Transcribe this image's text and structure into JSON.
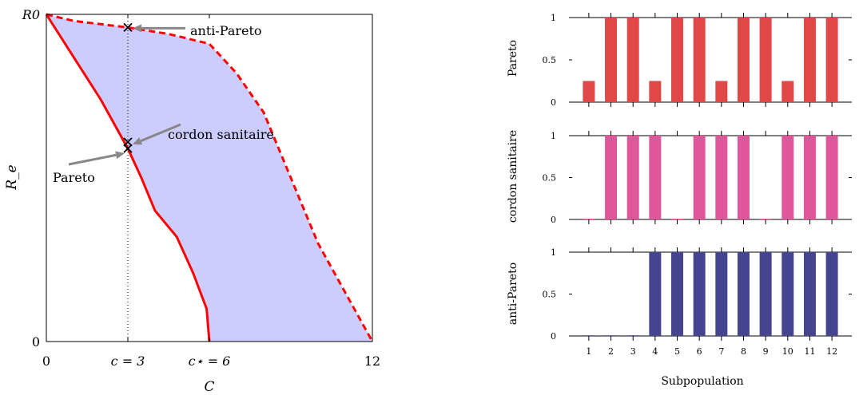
{
  "chart_data": [
    {
      "type": "area",
      "xlabel": "C",
      "ylabel": "R_e",
      "xlim": [
        0,
        12
      ],
      "ylim": [
        0,
        1
      ],
      "x_ticks": [
        {
          "value": 0,
          "label": "0"
        },
        {
          "value": 3,
          "label": "c = 3"
        },
        {
          "value": 6,
          "label": "c⋆ = 6"
        },
        {
          "value": 12,
          "label": "12"
        }
      ],
      "y_ticks": [
        {
          "value": 0,
          "label": "0"
        },
        {
          "value": 1,
          "label": "R0"
        }
      ],
      "grid": false,
      "reference_line_x": 3,
      "series": [
        {
          "name": "Pareto",
          "style": "solid",
          "color": "#ff0000",
          "x": [
            0,
            1,
            2,
            3,
            3.5,
            4,
            4.8,
            5.4,
            5.9,
            6.0
          ],
          "y": [
            1,
            0.87,
            0.74,
            0.59,
            0.5,
            0.4,
            0.32,
            0.21,
            0.1,
            0
          ]
        },
        {
          "name": "anti-Pareto",
          "style": "dashed",
          "color": "#ff0000",
          "x": [
            0,
            1,
            3,
            4.5,
            6,
            7,
            8,
            9,
            10,
            11,
            12
          ],
          "y": [
            1,
            0.98,
            0.96,
            0.94,
            0.91,
            0.82,
            0.7,
            0.5,
            0.3,
            0.15,
            0
          ]
        }
      ],
      "fill_color": "#ccccff",
      "annotations": [
        {
          "label": "anti-Pareto",
          "x": 3,
          "y": 0.96
        },
        {
          "label": "cordon sanitaire",
          "x": 3,
          "y": 0.61
        },
        {
          "label": "Pareto",
          "x": 3,
          "y": 0.59
        }
      ]
    },
    {
      "type": "bar",
      "xlabel": "Subpopulation",
      "categories": [
        "1",
        "2",
        "3",
        "4",
        "5",
        "6",
        "7",
        "8",
        "9",
        "10",
        "11",
        "12"
      ],
      "ylim": [
        0,
        1
      ],
      "y_ticks": [
        "0",
        "0.5",
        "1"
      ],
      "series": [
        {
          "name": "Pareto",
          "color": "#e04848",
          "values": [
            0.25,
            1,
            1,
            0.25,
            1,
            1,
            0.25,
            1,
            1,
            0.25,
            1,
            1
          ]
        },
        {
          "name": "cordon sanitaire",
          "color": "#e0569a",
          "values": [
            0,
            1,
            1,
            1,
            0,
            1,
            1,
            1,
            0,
            1,
            1,
            1
          ]
        },
        {
          "name": "anti-Pareto",
          "color": "#45458f",
          "values": [
            0,
            0,
            0,
            1,
            1,
            1,
            1,
            1,
            1,
            1,
            1,
            1
          ]
        }
      ]
    }
  ]
}
